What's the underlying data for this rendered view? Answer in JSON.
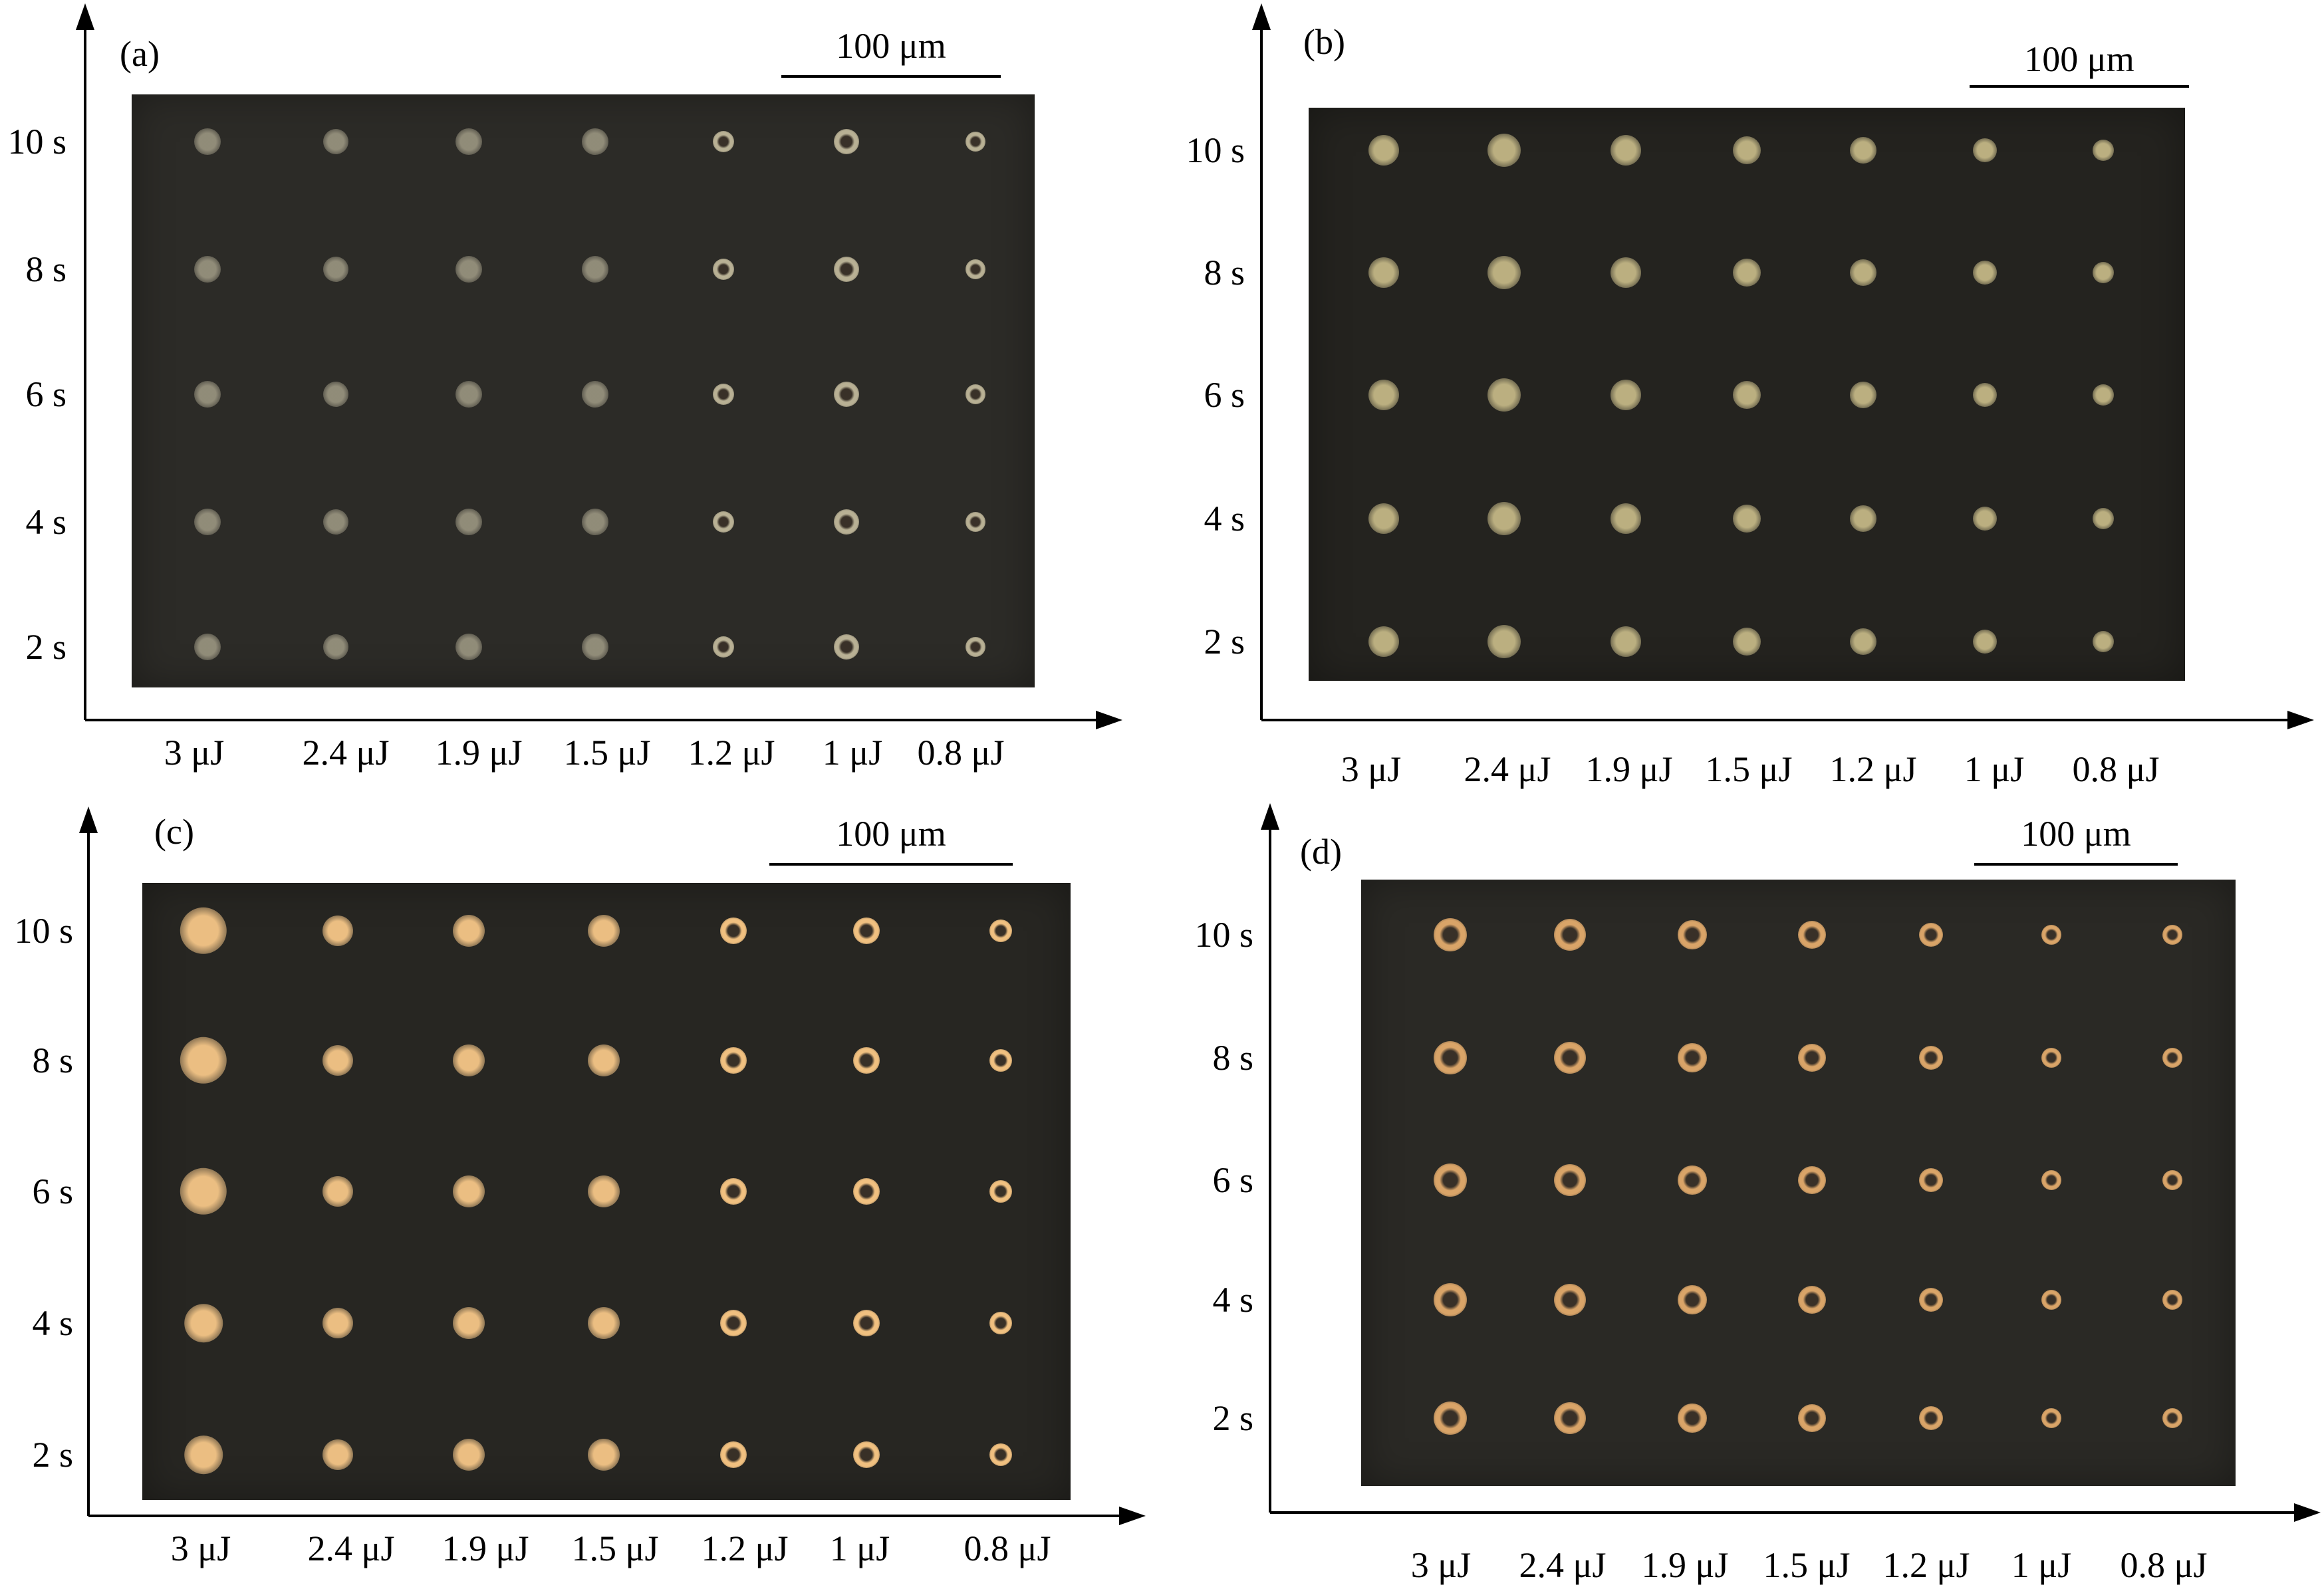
{
  "scale_bar_text": "100 μm",
  "y_labels": [
    "10 s",
    "8 s",
    "6 s",
    "4 s",
    "2 s"
  ],
  "x_labels": [
    "3 μJ",
    "2.4 μJ",
    "1.9 μJ",
    "1.5 μJ",
    "1.2 μJ",
    "1 μJ",
    "0.8 μJ"
  ],
  "panels": [
    {
      "tag": "(a)",
      "spot_style": "dim-gray"
    },
    {
      "tag": "(b)",
      "spot_style": "pale-yellow"
    },
    {
      "tag": "(c)",
      "spot_style": "bright-orange"
    },
    {
      "tag": "(d)",
      "spot_style": "orange-ring"
    }
  ]
}
